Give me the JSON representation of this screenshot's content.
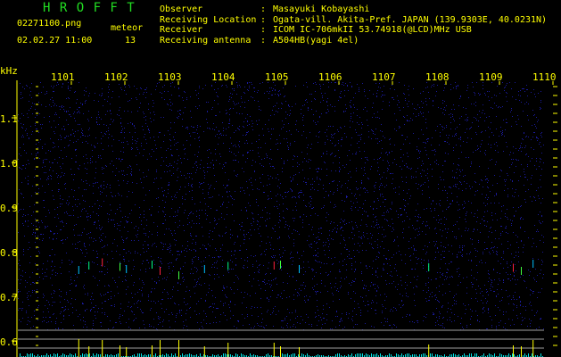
{
  "header": {
    "app_title": "H R O F F T",
    "filename": "02271100.png",
    "datetime": "02.02.27 11:00",
    "meteor_label": "meteor",
    "meteor_count": "13",
    "info": [
      {
        "label": "Observer",
        "value": "Masayuki Kobayashi"
      },
      {
        "label": "Receiving Location",
        "value": "Ogata-vill. Akita-Pref. JAPAN (139.9303E, 40.0231N)"
      },
      {
        "label": "Receiver",
        "value": "ICOM IC-706mkII 53.74918(@LCD)MHz USB"
      },
      {
        "label": "Receiving antenna",
        "value": "A504HB(yagi 4el)"
      }
    ]
  },
  "chart_data": {
    "type": "heatmap",
    "ylabel": "kHz",
    "x_ticks": [
      "1101",
      "1102",
      "1103",
      "1104",
      "1105",
      "1106",
      "1107",
      "1108",
      "1109",
      "1110"
    ],
    "y_ticks": [
      "1.1",
      "1.0",
      "0.9",
      "0.8",
      "0.7",
      "0.6"
    ],
    "xlim": [
      1100,
      1110
    ],
    "ylim": [
      0.58,
      1.2
    ],
    "echoes": [
      {
        "t": 1101.13,
        "f": 0.76
      },
      {
        "t": 1101.32,
        "f": 0.77
      },
      {
        "t": 1101.57,
        "f": 0.777
      },
      {
        "t": 1101.9,
        "f": 0.767
      },
      {
        "t": 1102.02,
        "f": 0.762
      },
      {
        "t": 1102.5,
        "f": 0.772
      },
      {
        "t": 1102.65,
        "f": 0.758
      },
      {
        "t": 1103.0,
        "f": 0.748
      },
      {
        "t": 1103.48,
        "f": 0.762
      },
      {
        "t": 1103.92,
        "f": 0.769
      },
      {
        "t": 1104.78,
        "f": 0.77
      },
      {
        "t": 1104.9,
        "f": 0.772
      },
      {
        "t": 1105.25,
        "f": 0.762
      },
      {
        "t": 1107.67,
        "f": 0.766
      },
      {
        "t": 1109.25,
        "f": 0.765
      },
      {
        "t": 1109.4,
        "f": 0.758
      },
      {
        "t": 1109.62,
        "f": 0.774
      }
    ],
    "colors": {
      "background": "#000000",
      "noise": "#1a1a9a",
      "axis": "#ffff00",
      "histogram": "#00e5e5",
      "peak": "#ffff00",
      "guide": "#a0a0a0"
    }
  }
}
